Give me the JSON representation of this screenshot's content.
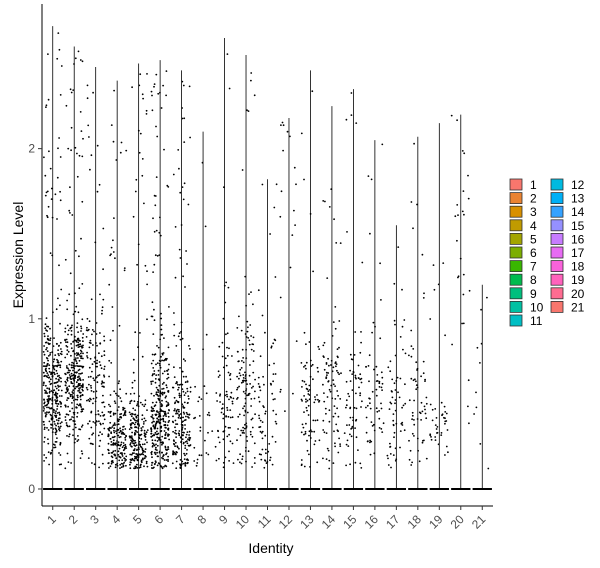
{
  "chart_data": {
    "type": "violin",
    "xlabel": "Identity",
    "ylabel": "Expression Level",
    "categories": [
      "1",
      "2",
      "3",
      "4",
      "5",
      "6",
      "7",
      "8",
      "9",
      "10",
      "11",
      "12",
      "13",
      "14",
      "15",
      "16",
      "17",
      "18",
      "19",
      "20",
      "21"
    ],
    "ylim": [
      -0.1,
      2.85
    ],
    "yticks": [
      0,
      1,
      2
    ],
    "legend_position": "right",
    "series": [
      {
        "category": "1",
        "max": 2.72,
        "n_points": 340,
        "center": 0.58,
        "spread": 0.18,
        "color": "#F8766D"
      },
      {
        "category": "2",
        "max": 2.6,
        "n_points": 330,
        "center": 0.62,
        "spread": 0.22,
        "color": "#EA8331"
      },
      {
        "category": "3",
        "max": 2.48,
        "n_points": 150,
        "center": 0.6,
        "spread": 0.25,
        "color": "#D89000"
      },
      {
        "category": "4",
        "max": 2.4,
        "n_points": 210,
        "center": 0.3,
        "spread": 0.15,
        "color": "#C09B00"
      },
      {
        "category": "5",
        "max": 2.5,
        "n_points": 230,
        "center": 0.28,
        "spread": 0.14,
        "color": "#A3A500"
      },
      {
        "category": "6",
        "max": 2.52,
        "n_points": 360,
        "center": 0.42,
        "spread": 0.2,
        "color": "#7CAE00"
      },
      {
        "category": "7",
        "max": 2.46,
        "n_points": 220,
        "center": 0.4,
        "spread": 0.2,
        "color": "#39B600"
      },
      {
        "category": "8",
        "max": 2.1,
        "n_points": 30,
        "center": 0.4,
        "spread": 0.2,
        "color": "#00BB4E"
      },
      {
        "category": "9",
        "max": 2.65,
        "n_points": 80,
        "center": 0.5,
        "spread": 0.25,
        "color": "#00BF7D"
      },
      {
        "category": "10",
        "max": 2.55,
        "n_points": 130,
        "center": 0.55,
        "spread": 0.25,
        "color": "#00C1A3"
      },
      {
        "category": "11",
        "max": 1.82,
        "n_points": 70,
        "center": 0.45,
        "spread": 0.25,
        "color": "#00BFC4"
      },
      {
        "category": "12",
        "max": 2.18,
        "n_points": 20,
        "center": 1.5,
        "spread": 0.6,
        "color": "#00BAE0"
      },
      {
        "category": "13",
        "max": 2.46,
        "n_points": 80,
        "center": 0.5,
        "spread": 0.2,
        "color": "#00B0F6"
      },
      {
        "category": "14",
        "max": 2.25,
        "n_points": 90,
        "center": 0.55,
        "spread": 0.25,
        "color": "#35A2FF"
      },
      {
        "category": "15",
        "max": 2.35,
        "n_points": 70,
        "center": 0.5,
        "spread": 0.2,
        "color": "#9590FF"
      },
      {
        "category": "16",
        "max": 2.05,
        "n_points": 60,
        "center": 0.45,
        "spread": 0.2,
        "color": "#C77CFF"
      },
      {
        "category": "17",
        "max": 1.55,
        "n_points": 60,
        "center": 0.55,
        "spread": 0.25,
        "color": "#E76BF3"
      },
      {
        "category": "18",
        "max": 2.07,
        "n_points": 60,
        "center": 0.5,
        "spread": 0.2,
        "color": "#FA62DB"
      },
      {
        "category": "19",
        "max": 2.15,
        "n_points": 40,
        "center": 0.35,
        "spread": 0.1,
        "color": "#FF62BC"
      },
      {
        "category": "20",
        "max": 2.2,
        "n_points": 25,
        "center": 1.4,
        "spread": 0.5,
        "color": "#FF6C91"
      },
      {
        "category": "21",
        "max": 1.2,
        "n_points": 10,
        "center": 0.6,
        "spread": 0.4,
        "color": "#F8766D"
      }
    ],
    "legend": [
      {
        "label": "1",
        "color": "#F8766D"
      },
      {
        "label": "2",
        "color": "#EA8331"
      },
      {
        "label": "3",
        "color": "#D89000"
      },
      {
        "label": "4",
        "color": "#C09B00"
      },
      {
        "label": "5",
        "color": "#A3A500"
      },
      {
        "label": "6",
        "color": "#7CAE00"
      },
      {
        "label": "7",
        "color": "#39B600"
      },
      {
        "label": "8",
        "color": "#00BB4E"
      },
      {
        "label": "9",
        "color": "#00BF7D"
      },
      {
        "label": "10",
        "color": "#00C1A3"
      },
      {
        "label": "11",
        "color": "#00BFC4"
      },
      {
        "label": "12",
        "color": "#00BAE0"
      },
      {
        "label": "13",
        "color": "#00B0F6"
      },
      {
        "label": "14",
        "color": "#35A2FF"
      },
      {
        "label": "15",
        "color": "#9590FF"
      },
      {
        "label": "16",
        "color": "#C77CFF"
      },
      {
        "label": "17",
        "color": "#E76BF3"
      },
      {
        "label": "18",
        "color": "#FA62DB"
      },
      {
        "label": "19",
        "color": "#FF62BC"
      },
      {
        "label": "20",
        "color": "#FF6C91"
      },
      {
        "label": "21",
        "color": "#F8766D"
      }
    ]
  }
}
